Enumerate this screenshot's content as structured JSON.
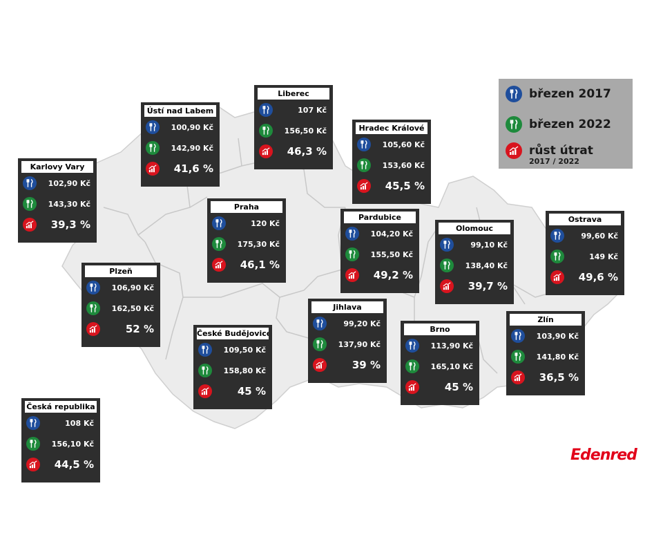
{
  "legend": {
    "item_2017": "březen 2017",
    "item_2022": "březen 2022",
    "item_growth": "růst útrat",
    "item_growth_sub": "2017 / 2022"
  },
  "colors": {
    "icon_2017": "#1f4e9c",
    "icon_2022": "#1e8a3c",
    "icon_growth": "#d8141e",
    "card_bg": "#2e2e2e",
    "map_fill": "#ececec",
    "map_border": "#ffffff"
  },
  "icons": {
    "meal_2017": "cutlery-icon",
    "meal_2022": "cutlery-icon",
    "growth": "growth-chart-icon"
  },
  "regions": [
    {
      "id": "karlovy-vary",
      "name": "Karlovy Vary",
      "v2017": "102,90 Kč",
      "v2022": "143,30 Kč",
      "growth": "39,3 %"
    },
    {
      "id": "usti-nad-labem",
      "name": "Ústí nad Labem",
      "v2017": "100,90 Kč",
      "v2022": "142,90 Kč",
      "growth": "41,6 %"
    },
    {
      "id": "liberec",
      "name": "Liberec",
      "v2017": "107 Kč",
      "v2022": "156,50 Kč",
      "growth": "46,3 %"
    },
    {
      "id": "hradec-kralove",
      "name": "Hradec Králové",
      "v2017": "105,60 Kč",
      "v2022": "153,60 Kč",
      "growth": "45,5 %"
    },
    {
      "id": "praha",
      "name": "Praha",
      "v2017": "120 Kč",
      "v2022": "175,30 Kč",
      "growth": "46,1 %"
    },
    {
      "id": "pardubice",
      "name": "Pardubice",
      "v2017": "104,20 Kč",
      "v2022": "155,50 Kč",
      "growth": "49,2 %"
    },
    {
      "id": "olomouc",
      "name": "Olomouc",
      "v2017": "99,10 Kč",
      "v2022": "138,40 Kč",
      "growth": "39,7 %"
    },
    {
      "id": "ostrava",
      "name": "Ostrava",
      "v2017": "99,60 Kč",
      "v2022": "149 Kč",
      "growth": "49,6 %"
    },
    {
      "id": "plzen",
      "name": "Plzeň",
      "v2017": "106,90 Kč",
      "v2022": "162,50 Kč",
      "growth": "52 %"
    },
    {
      "id": "ceske-budejovice",
      "name": "České Budějovice",
      "v2017": "109,50 Kč",
      "v2022": "158,80 Kč",
      "growth": "45 %"
    },
    {
      "id": "jihlava",
      "name": "Jihlava",
      "v2017": "99,20 Kč",
      "v2022": "137,90 Kč",
      "growth": "39 %"
    },
    {
      "id": "brno",
      "name": "Brno",
      "v2017": "113,90 Kč",
      "v2022": "165,10 Kč",
      "growth": "45 %"
    },
    {
      "id": "zlin",
      "name": "Zlín",
      "v2017": "103,90 Kč",
      "v2022": "141,80 Kč",
      "growth": "36,5 %"
    },
    {
      "id": "ceska-republika",
      "name": "Česká republika",
      "v2017": "108 Kč",
      "v2022": "156,10 Kč",
      "growth": "44,5 %"
    }
  ],
  "brand": {
    "logo": "Edenred"
  }
}
